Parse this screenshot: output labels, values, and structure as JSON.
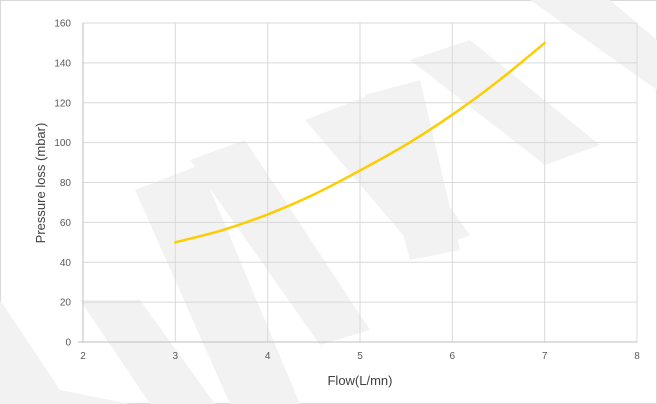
{
  "chart_data": {
    "type": "line",
    "xlabel": "Flow(L/mn)",
    "ylabel": "Pressure loss (mbar)",
    "xlim": [
      2,
      8
    ],
    "ylim": [
      0,
      160
    ],
    "xticks": [
      "2",
      "3",
      "4",
      "5",
      "6",
      "7",
      "8"
    ],
    "yticks": [
      "0",
      "20",
      "40",
      "60",
      "80",
      "100",
      "120",
      "140",
      "160"
    ],
    "grid": true,
    "series": [
      {
        "color": "#FFCC00",
        "x": [
          3,
          3.5,
          4,
          4.5,
          5,
          5.5,
          6,
          6.5,
          7
        ],
        "y": [
          50,
          56,
          64,
          74,
          86,
          99,
          114,
          131,
          150
        ]
      }
    ],
    "watermark": {
      "text": "PRELIMINARY",
      "color": "#f2f2f2"
    }
  }
}
